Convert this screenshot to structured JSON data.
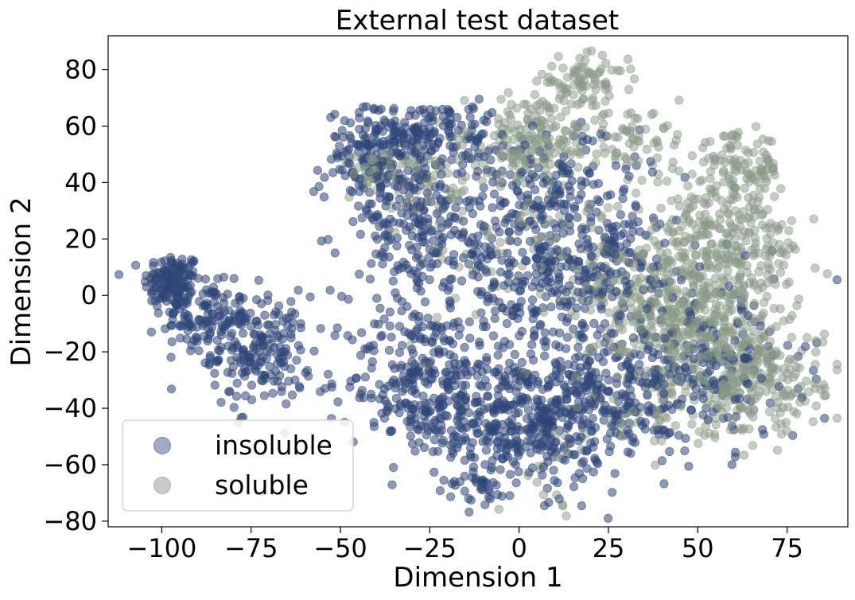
{
  "chart_data": {
    "type": "scatter",
    "title": "External test dataset",
    "xlabel": "Dimension 1",
    "ylabel": "Dimension 2",
    "xlim": [
      -115,
      92
    ],
    "ylim": [
      -82,
      92
    ],
    "xticks": [
      -100,
      -75,
      -50,
      -25,
      0,
      25,
      50,
      75
    ],
    "yticks": [
      -80,
      -60,
      -40,
      -20,
      0,
      20,
      40,
      60,
      80
    ],
    "xtick_labels": [
      "−100",
      "−75",
      "−50",
      "−25",
      "0",
      "25",
      "50",
      "75"
    ],
    "ytick_labels": [
      "−80",
      "−60",
      "−40",
      "−20",
      "0",
      "20",
      "40",
      "60",
      "80"
    ],
    "grid": false,
    "legend_position": "lower-left",
    "series": [
      {
        "name": "insoluble",
        "color": "#2f4678",
        "clusters": [
          {
            "x": -97,
            "y": 5,
            "sx": 4,
            "sy": 5,
            "n": 140
          },
          {
            "x": -88,
            "y": -8,
            "sx": 6,
            "sy": 6,
            "n": 120
          },
          {
            "x": -72,
            "y": -20,
            "sx": 7,
            "sy": 10,
            "n": 180
          },
          {
            "x": -40,
            "y": 50,
            "sx": 7,
            "sy": 8,
            "n": 150
          },
          {
            "x": -28,
            "y": 58,
            "sx": 6,
            "sy": 5,
            "n": 80
          },
          {
            "x": -32,
            "y": 25,
            "sx": 10,
            "sy": 12,
            "n": 160
          },
          {
            "x": -28,
            "y": -30,
            "sx": 10,
            "sy": 14,
            "n": 260
          },
          {
            "x": -2,
            "y": 10,
            "sx": 16,
            "sy": 18,
            "n": 340
          },
          {
            "x": 0,
            "y": -45,
            "sx": 12,
            "sy": 12,
            "n": 340
          },
          {
            "x": 25,
            "y": -35,
            "sx": 12,
            "sy": 12,
            "n": 280
          },
          {
            "x": 25,
            "y": 10,
            "sx": 12,
            "sy": 14,
            "n": 180
          },
          {
            "x": -15,
            "y": 55,
            "sx": 7,
            "sy": 8,
            "n": 60
          },
          {
            "x": 55,
            "y": -25,
            "sx": 12,
            "sy": 14,
            "n": 160
          },
          {
            "x": 10,
            "y": 40,
            "sx": 12,
            "sy": 10,
            "n": 100
          },
          {
            "x": -12,
            "y": -68,
            "sx": 4,
            "sy": 3,
            "n": 25
          }
        ]
      },
      {
        "name": "soluble",
        "color": "#8a9a88",
        "clusters": [
          {
            "x": 5,
            "y": 55,
            "sx": 10,
            "sy": 8,
            "n": 180
          },
          {
            "x": 18,
            "y": 76,
            "sx": 6,
            "sy": 4,
            "n": 80
          },
          {
            "x": 32,
            "y": 55,
            "sx": 7,
            "sy": 5,
            "n": 50
          },
          {
            "x": 62,
            "y": 45,
            "sx": 6,
            "sy": 6,
            "n": 90
          },
          {
            "x": 55,
            "y": 15,
            "sx": 12,
            "sy": 14,
            "n": 380
          },
          {
            "x": 45,
            "y": -10,
            "sx": 12,
            "sy": 12,
            "n": 320
          },
          {
            "x": 65,
            "y": -30,
            "sx": 10,
            "sy": 10,
            "n": 260
          },
          {
            "x": -40,
            "y": 45,
            "sx": 6,
            "sy": 4,
            "n": 50
          },
          {
            "x": -25,
            "y": 40,
            "sx": 6,
            "sy": 5,
            "n": 40
          },
          {
            "x": 20,
            "y": 10,
            "sx": 10,
            "sy": 10,
            "n": 60
          },
          {
            "x": -10,
            "y": 20,
            "sx": 12,
            "sy": 20,
            "n": 60
          },
          {
            "x": 10,
            "y": -60,
            "sx": 6,
            "sy": 8,
            "n": 20
          },
          {
            "x": 35,
            "y": -40,
            "sx": 8,
            "sy": 8,
            "n": 40
          }
        ]
      }
    ]
  }
}
